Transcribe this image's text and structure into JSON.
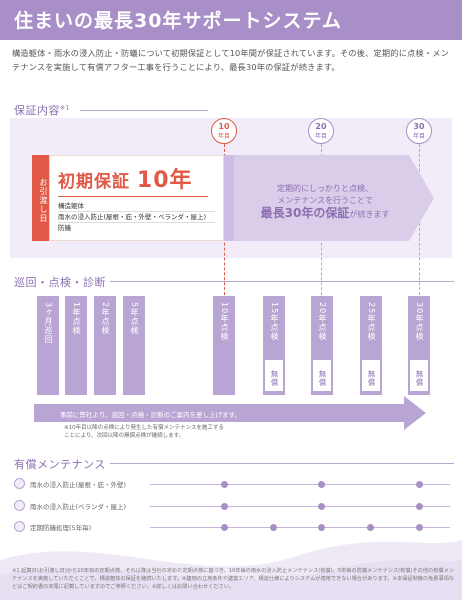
{
  "title": "住まいの最長30年サポートシステム",
  "intro": "構造躯体・雨水の浸入防止・防蟻について初期保証として10年間が保証されています。その後、定期的に点検・メンテナンスを実施して有償アフター工事を行うことにより、最長30年の保証が続きます。",
  "guarantee": {
    "heading": "保証内容",
    "heading_note": "※1",
    "years": [
      {
        "num": "10",
        "unit": "年目"
      },
      {
        "num": "20",
        "unit": "年目"
      },
      {
        "num": "30",
        "unit": "年目"
      }
    ],
    "handover": "お引渡し日",
    "initial_title_prefix": "初期保証",
    "initial_title_big": "10年",
    "items": [
      "構造躯体",
      "雨水の浸入防止(屋根・庇・外壁・ベランダ・屋上)",
      "防蟻"
    ],
    "extend_line1": "定期的にしっかりと点検、",
    "extend_line2": "メンテナンスを行うことで",
    "extend_strong": "最長30年の保証",
    "extend_tail": "が続きます"
  },
  "inspection": {
    "heading": "巡回・点検・診断",
    "columns": [
      {
        "label": "3ヶ月巡回",
        "paid": ""
      },
      {
        "label": "1年点検",
        "paid": ""
      },
      {
        "label": "2年点検",
        "paid": ""
      },
      {
        "label": "5年点検",
        "paid": ""
      },
      {
        "label": "10年点検",
        "paid": ""
      },
      {
        "label": "15年点検",
        "paid": "無償"
      },
      {
        "label": "20年点検",
        "paid": "無償"
      },
      {
        "label": "25年点検",
        "paid": "無償"
      },
      {
        "label": "30年点検",
        "paid": "無償"
      }
    ],
    "arrow_text": "事前に弊社より、巡回・点検・診断のご案内を差し上げます。",
    "small_note": "※10年目以降の点検により発生した有償メンテナンスを施工することにより、次回以降の無償点検が継続します。"
  },
  "maintenance": {
    "heading": "有償メンテナンス",
    "rows": [
      {
        "label": "雨水の浸入防止(屋根・庇・外壁)"
      },
      {
        "label": "雨水の浸入防止(ベランダ・屋上)"
      },
      {
        "label": "定期防蟻処理(5年毎)"
      }
    ]
  },
  "footnote": "※1 起算日(お引渡し日)から10年目の定期点検、それ以降は当社の定めた定期点検に基づき、10年毎の雨水の浸入防止メンテナンス(有償)、5年毎の防蟻メンテナンス(有償)その他の有償メンテナンスを実施していただくことで、構造躯体の保証を継続いたします。※建物の立地条件や建築エリア、構造仕様によりシステムが適用できない場合があります。※本保証制度の免責事項などはご契約書の末尾に記載していますのでご参照ください。※詳しくはお問い合わせください。"
}
